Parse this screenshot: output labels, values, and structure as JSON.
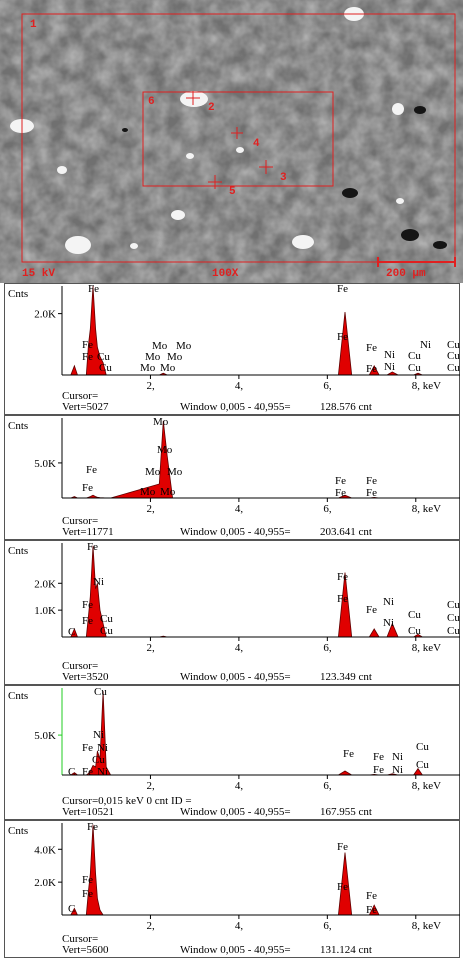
{
  "micrograph": {
    "labels": [
      "1",
      "6",
      "2",
      "4",
      "3",
      "5"
    ],
    "voltage": "15 kV",
    "magnification": "100X",
    "scale": "200 μm"
  },
  "chart_data": [
    {
      "type": "area",
      "y_label": "Cnts",
      "color": "#e00000",
      "axis_color": "#000000",
      "x": [
        0.05,
        0.2,
        0.28,
        0.35,
        0.55,
        0.6,
        0.64,
        0.7,
        0.76,
        0.8,
        0.86,
        0.93,
        1.0,
        1.1,
        2.2,
        2.29,
        2.38,
        2.5,
        6.25,
        6.4,
        6.55,
        6.95,
        7.06,
        7.17,
        7.35,
        7.47,
        7.6,
        7.95,
        8.05,
        8.15,
        9.0
      ],
      "values": [
        0,
        0,
        300,
        0,
        0,
        1000,
        1500,
        2900,
        1500,
        900,
        600,
        400,
        0,
        0,
        0,
        60,
        0,
        0,
        0,
        2050,
        0,
        0,
        300,
        0,
        0,
        100,
        0,
        0,
        60,
        0,
        0
      ],
      "xlim": [
        0,
        9
      ],
      "xticks": [
        {
          "value": 2,
          "label": "2,"
        },
        {
          "value": 4,
          "label": "4,"
        },
        {
          "value": 6,
          "label": "6,"
        },
        {
          "value": 8,
          "label": "8, keV"
        }
      ],
      "ylim": [
        0,
        2900
      ],
      "yticks": [
        {
          "value": 2000,
          "label": "2.0K"
        }
      ],
      "labels": [
        "Fe",
        "Fe",
        "Fe",
        "Cu",
        "Cu",
        "Mo",
        "Mo",
        "Mo",
        "Mo",
        "Mo",
        "Mo",
        "Fe",
        "Fe",
        "Fe",
        "Fe",
        "Ni",
        "Ni",
        "Ni",
        "Cu",
        "Cu",
        "Cu",
        "Cu",
        "Cu"
      ],
      "cursor": "Cursor=",
      "vert": "Vert=5027",
      "window": "Window 0,005 - 40,955=",
      "count": "128.576 cnt"
    },
    {
      "type": "area",
      "y_label": "Cnts",
      "color": "#e00000",
      "axis_color": "#000000",
      "x": [
        0.05,
        0.2,
        0.28,
        0.35,
        0.55,
        0.6,
        0.64,
        0.7,
        0.76,
        0.8,
        0.86,
        0.93,
        1.0,
        1.1,
        2.2,
        2.29,
        2.38,
        2.5,
        6.25,
        6.4,
        6.55,
        6.95,
        7.06,
        7.17,
        7.35,
        7.47,
        7.6,
        7.95,
        8.05,
        8.15,
        9.0
      ],
      "values": [
        0,
        0,
        200,
        0,
        0,
        100,
        200,
        400,
        200,
        100,
        50,
        30,
        0,
        0,
        2000,
        11000,
        6000,
        0,
        0,
        400,
        0,
        0,
        80,
        0,
        0,
        0,
        0,
        0,
        0,
        0,
        0
      ],
      "xlim": [
        0,
        9
      ],
      "xticks": [
        {
          "value": 2,
          "label": "2,"
        },
        {
          "value": 4,
          "label": "4,"
        },
        {
          "value": 6,
          "label": "6,"
        },
        {
          "value": 8,
          "label": "8, keV"
        }
      ],
      "ylim": [
        0,
        11400
      ],
      "yticks": [
        {
          "value": 5000,
          "label": "5.0K"
        }
      ],
      "labels": [
        "Mo",
        "Mo",
        "Mo",
        "Mo",
        "Mo",
        "Mo",
        "Fe",
        "Fe",
        "Fe",
        "Fe",
        "Fe",
        "Fe"
      ],
      "cursor": "Cursor=",
      "vert": "Vert=11771",
      "window": "Window 0,005 - 40,955=",
      "count": "203.641 cnt"
    },
    {
      "type": "area",
      "y_label": "Cnts",
      "color": "#e00000",
      "axis_color": "#000000",
      "x": [
        0.05,
        0.2,
        0.28,
        0.35,
        0.55,
        0.6,
        0.64,
        0.7,
        0.76,
        0.8,
        0.86,
        0.93,
        1.0,
        1.1,
        2.2,
        2.29,
        2.38,
        2.5,
        6.25,
        6.4,
        6.55,
        6.95,
        7.06,
        7.17,
        7.35,
        7.47,
        7.6,
        7.95,
        8.05,
        8.15,
        9.0
      ],
      "values": [
        0,
        0,
        300,
        0,
        0,
        800,
        1500,
        3400,
        1800,
        2000,
        1000,
        500,
        0,
        0,
        0,
        30,
        0,
        0,
        0,
        2400,
        0,
        0,
        300,
        0,
        0,
        500,
        0,
        0,
        100,
        0,
        0
      ],
      "xlim": [
        0,
        9
      ],
      "xticks": [
        {
          "value": 2,
          "label": "2,"
        },
        {
          "value": 4,
          "label": "4,"
        },
        {
          "value": 6,
          "label": "6,"
        },
        {
          "value": 8,
          "label": "8, keV"
        }
      ],
      "ylim": [
        0,
        3500
      ],
      "yticks": [
        {
          "value": 1000,
          "label": "1.0K"
        },
        {
          "value": 2000,
          "label": "2.0K"
        }
      ],
      "labels": [
        "Fe",
        "Ni",
        "Fe",
        "Cu",
        "Fe",
        "Cu",
        "C",
        "Fe",
        "Fe",
        "Fe",
        "Ni",
        "Ni",
        "Cu",
        "Cu",
        "Cu",
        "Cu",
        "Cu"
      ],
      "cursor": "Cursor=",
      "vert": "Vert=3520",
      "window": "Window 0,005 - 40,955=",
      "count": "123.349 cnt"
    },
    {
      "type": "area",
      "y_label": "Cnts",
      "color": "#e00000",
      "axis_color": "#22cc22",
      "x": [
        0.05,
        0.2,
        0.28,
        0.35,
        0.55,
        0.6,
        0.64,
        0.7,
        0.76,
        0.8,
        0.86,
        0.93,
        1.0,
        1.1,
        2.2,
        2.29,
        2.38,
        2.5,
        6.25,
        6.4,
        6.55,
        6.95,
        7.06,
        7.17,
        7.35,
        7.47,
        7.6,
        7.95,
        8.05,
        8.15,
        9.0
      ],
      "values": [
        0,
        0,
        300,
        0,
        0,
        200,
        500,
        1200,
        1000,
        3000,
        2000,
        10500,
        1000,
        0,
        0,
        0,
        0,
        0,
        0,
        500,
        0,
        0,
        80,
        0,
        0,
        150,
        0,
        0,
        800,
        0,
        0
      ],
      "xlim": [
        0,
        9
      ],
      "xticks": [
        {
          "value": 2,
          "label": "2,"
        },
        {
          "value": 4,
          "label": "4,"
        },
        {
          "value": 6,
          "label": "6,"
        },
        {
          "value": 8,
          "label": "8, keV"
        }
      ],
      "ylim": [
        0,
        10900
      ],
      "yticks": [
        {
          "value": 5000,
          "label": "5.0K"
        }
      ],
      "labels": [
        "Cu",
        "Ni",
        "Fe",
        "Ni",
        "Cu",
        "C",
        "Fe",
        "Ni",
        "Fe",
        "Fe",
        "Ni",
        "Fe",
        "Ni",
        "Cu",
        "Cu"
      ],
      "cursor": "Cursor=0,015 keV   0 cnt  ID =",
      "vert": "Vert=10521",
      "window": "Window 0,005 - 40,955=",
      "count": "167.955 cnt"
    },
    {
      "type": "area",
      "y_label": "Cnts",
      "color": "#e00000",
      "axis_color": "#000000",
      "x": [
        0.05,
        0.2,
        0.28,
        0.35,
        0.55,
        0.6,
        0.64,
        0.7,
        0.76,
        0.8,
        0.86,
        0.93,
        1.0,
        1.1,
        2.2,
        2.29,
        2.38,
        2.5,
        6.25,
        6.4,
        6.55,
        6.95,
        7.06,
        7.17,
        7.35,
        7.47,
        7.6,
        7.95,
        8.05,
        8.15,
        9.0
      ],
      "values": [
        0,
        0,
        400,
        0,
        0,
        1500,
        2500,
        5500,
        2500,
        1000,
        300,
        0,
        0,
        0,
        0,
        0,
        0,
        0,
        0,
        3800,
        0,
        0,
        600,
        0,
        0,
        0,
        0,
        0,
        0,
        0,
        0
      ],
      "xlim": [
        0,
        9
      ],
      "xticks": [
        {
          "value": 2,
          "label": "2,"
        },
        {
          "value": 4,
          "label": "4,"
        },
        {
          "value": 6,
          "label": "6,"
        },
        {
          "value": 8,
          "label": "8, keV"
        }
      ],
      "ylim": [
        0,
        5600
      ],
      "yticks": [
        {
          "value": 2000,
          "label": "2.0K"
        },
        {
          "value": 4000,
          "label": "4.0K"
        }
      ],
      "labels": [
        "Fe",
        "Fe",
        "Fe",
        "C",
        "Fe",
        "Fe",
        "Fe",
        "Fe"
      ],
      "cursor": "Cursor=",
      "vert": "Vert=5600",
      "window": "Window 0,005 - 40,955=",
      "count": "131.124 cnt"
    }
  ]
}
